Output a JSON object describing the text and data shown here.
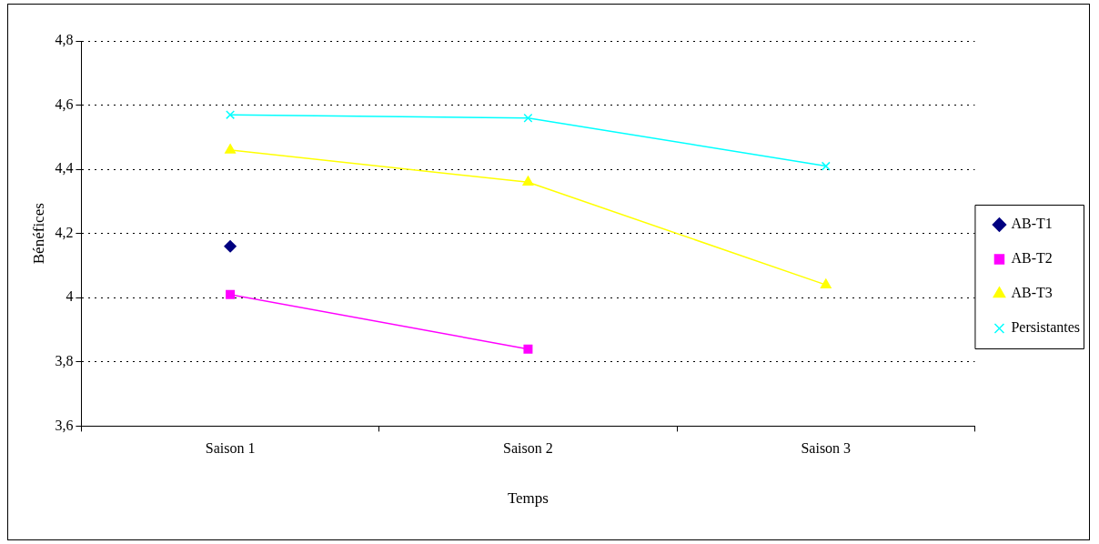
{
  "chart_data": {
    "type": "line",
    "xlabel": "Temps",
    "ylabel": "Bénéfices",
    "categories": [
      "Saison 1",
      "Saison 2",
      "Saison 3"
    ],
    "series": [
      {
        "name": "AB-T1",
        "color": "#000080",
        "marker": "diamond",
        "values": [
          4.16,
          null,
          null
        ]
      },
      {
        "name": "AB-T2",
        "color": "#ff00ff",
        "marker": "square",
        "values": [
          4.01,
          3.84,
          null
        ]
      },
      {
        "name": "AB-T3",
        "color": "#ffff00",
        "marker": "triangle",
        "values": [
          4.46,
          4.36,
          4.04
        ]
      },
      {
        "name": "Persistantes",
        "color": "#00ffff",
        "marker": "cross",
        "values": [
          4.57,
          4.56,
          4.41
        ]
      }
    ],
    "ylim": [
      3.6,
      4.8
    ],
    "yticks": [
      {
        "value": 3.6,
        "label": "3,6"
      },
      {
        "value": 3.8,
        "label": "3,8"
      },
      4,
      {
        "value": 4.2,
        "label": "4,2"
      },
      {
        "value": 4.4,
        "label": "4,4"
      },
      {
        "value": 4.6,
        "label": "4,6"
      },
      {
        "value": 4.8,
        "label": "4,8"
      }
    ],
    "grid": "y",
    "legend": "right",
    "line_style": "solid"
  }
}
